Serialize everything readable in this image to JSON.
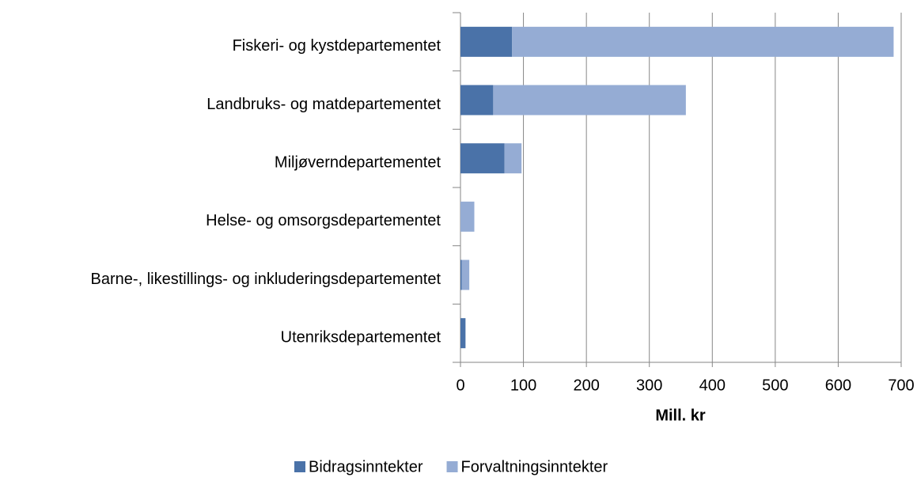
{
  "chart_data": {
    "type": "stacked_barh",
    "categories": [
      "Fiskeri- og kystdepartementet",
      "Landbruks- og matdepartementet",
      "Miljøverndepartementet",
      "Helse- og omsorgsdepartementet",
      "Barne-, likestillings- og inkluderingsdepartementet",
      "Utenriksdepartementet"
    ],
    "series": [
      {
        "name": "Bidragsinntekter",
        "color": "#4a72a8",
        "values": [
          82,
          52,
          70,
          0,
          2,
          8
        ]
      },
      {
        "name": "Forvaltningsinntekter",
        "color": "#95acd4",
        "values": [
          606,
          306,
          27,
          22,
          12,
          0
        ]
      }
    ],
    "xlabel": "Mill. kr",
    "xlim": [
      0,
      700
    ],
    "xticks": [
      0,
      100,
      200,
      300,
      400,
      500,
      600,
      700
    ],
    "grid": true,
    "legend": "bottom"
  }
}
